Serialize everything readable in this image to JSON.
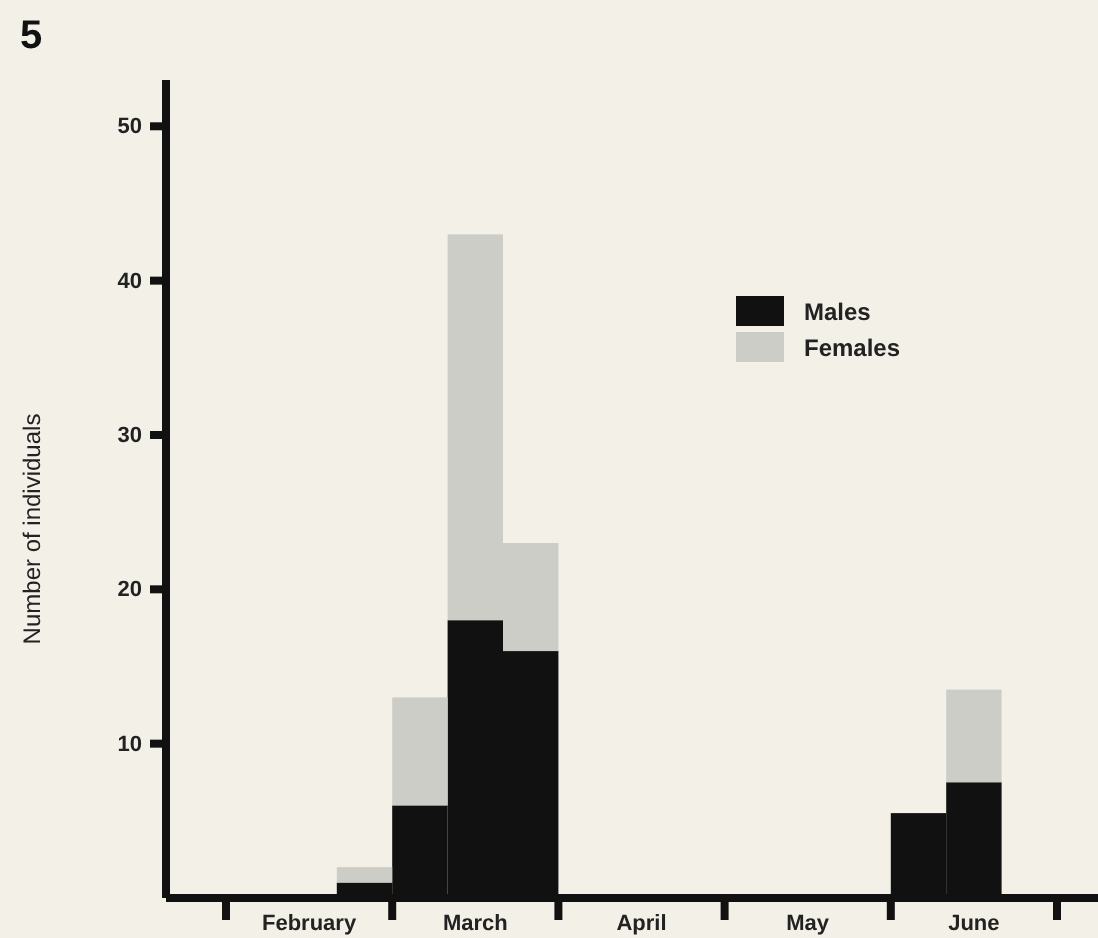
{
  "chart_data": {
    "type": "bar",
    "ylabel": "Number of individuals",
    "annotations": [
      "5"
    ],
    "categories": [
      null,
      "February",
      null,
      null,
      "March",
      null,
      null,
      "April",
      null,
      null,
      "May",
      null,
      null,
      "June",
      null
    ],
    "series": [
      {
        "name": "Males",
        "color": "#111111",
        "values": [
          0,
          0,
          1,
          6,
          18,
          16,
          0,
          0,
          0,
          0,
          0,
          0,
          5.5,
          7.5,
          0
        ]
      },
      {
        "name": "Females",
        "color": "#cdcdc8",
        "values": [
          0,
          0,
          1,
          7,
          25,
          7,
          0,
          0,
          0,
          0,
          0,
          0,
          0,
          6,
          0
        ]
      }
    ],
    "stacked": true,
    "ylim": [
      0,
      53
    ],
    "yticks": [
      10,
      20,
      30,
      40,
      50
    ],
    "legend": "top right"
  }
}
